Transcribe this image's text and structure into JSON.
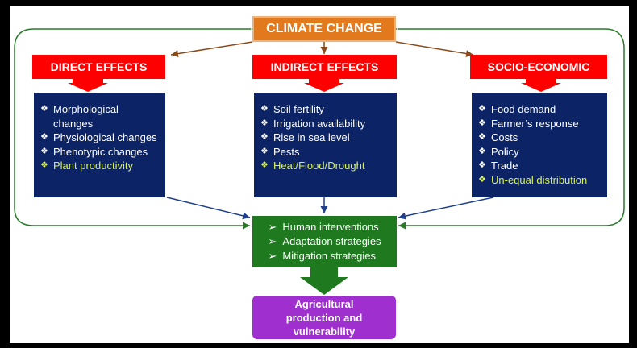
{
  "top": "CLIMATE CHANGE",
  "columns": [
    {
      "header": "DIRECT EFFECTS",
      "items": [
        "Morphological changes",
        "Physiological changes",
        "Phenotypic changes",
        "Plant productivity"
      ]
    },
    {
      "header": "INDIRECT EFFECTS",
      "items": [
        "Soil fertility",
        "Irrigation availability",
        "Rise in sea level",
        "Pests",
        "Heat/Flood/Drought"
      ]
    },
    {
      "header": "SOCIO-ECONOMIC",
      "items": [
        "Food demand",
        "Farmer’s response",
        "Costs",
        "Policy",
        "Trade",
        "Un-equal distribution"
      ]
    }
  ],
  "interventions": [
    "Human interventions",
    "Adaptation strategies",
    "Mitigation strategies"
  ],
  "outcome": "Agricultural production and vulnerability"
}
